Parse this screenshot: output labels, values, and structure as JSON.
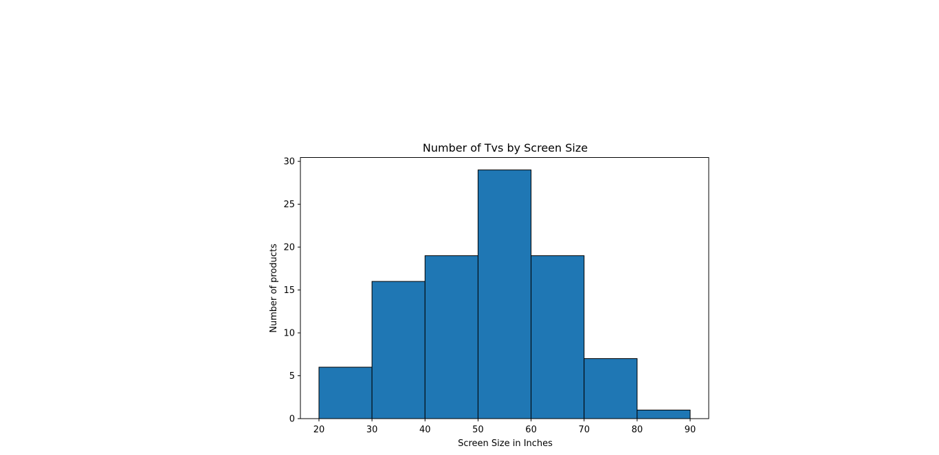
{
  "chart_data": {
    "type": "bar",
    "title": "Number of Tvs by Screen Size",
    "xlabel": "Screen Size in Inches",
    "ylabel": "Number of products",
    "bins": [
      {
        "x0": 20,
        "x1": 30,
        "count": 6
      },
      {
        "x0": 30,
        "x1": 40,
        "count": 16
      },
      {
        "x0": 40,
        "x1": 50,
        "count": 19
      },
      {
        "x0": 50,
        "x1": 60,
        "count": 29
      },
      {
        "x0": 60,
        "x1": 70,
        "count": 19
      },
      {
        "x0": 70,
        "x1": 80,
        "count": 7
      },
      {
        "x0": 80,
        "x1": 90,
        "count": 1
      }
    ],
    "xticks": [
      20,
      30,
      40,
      50,
      60,
      70,
      80,
      90
    ],
    "yticks": [
      0,
      5,
      10,
      15,
      20,
      25,
      30
    ],
    "xlim": [
      16.5,
      93.5
    ],
    "ylim": [
      0,
      30.45
    ],
    "grid": false,
    "bar_color": "#1f77b4",
    "edge_color": "#000000"
  }
}
